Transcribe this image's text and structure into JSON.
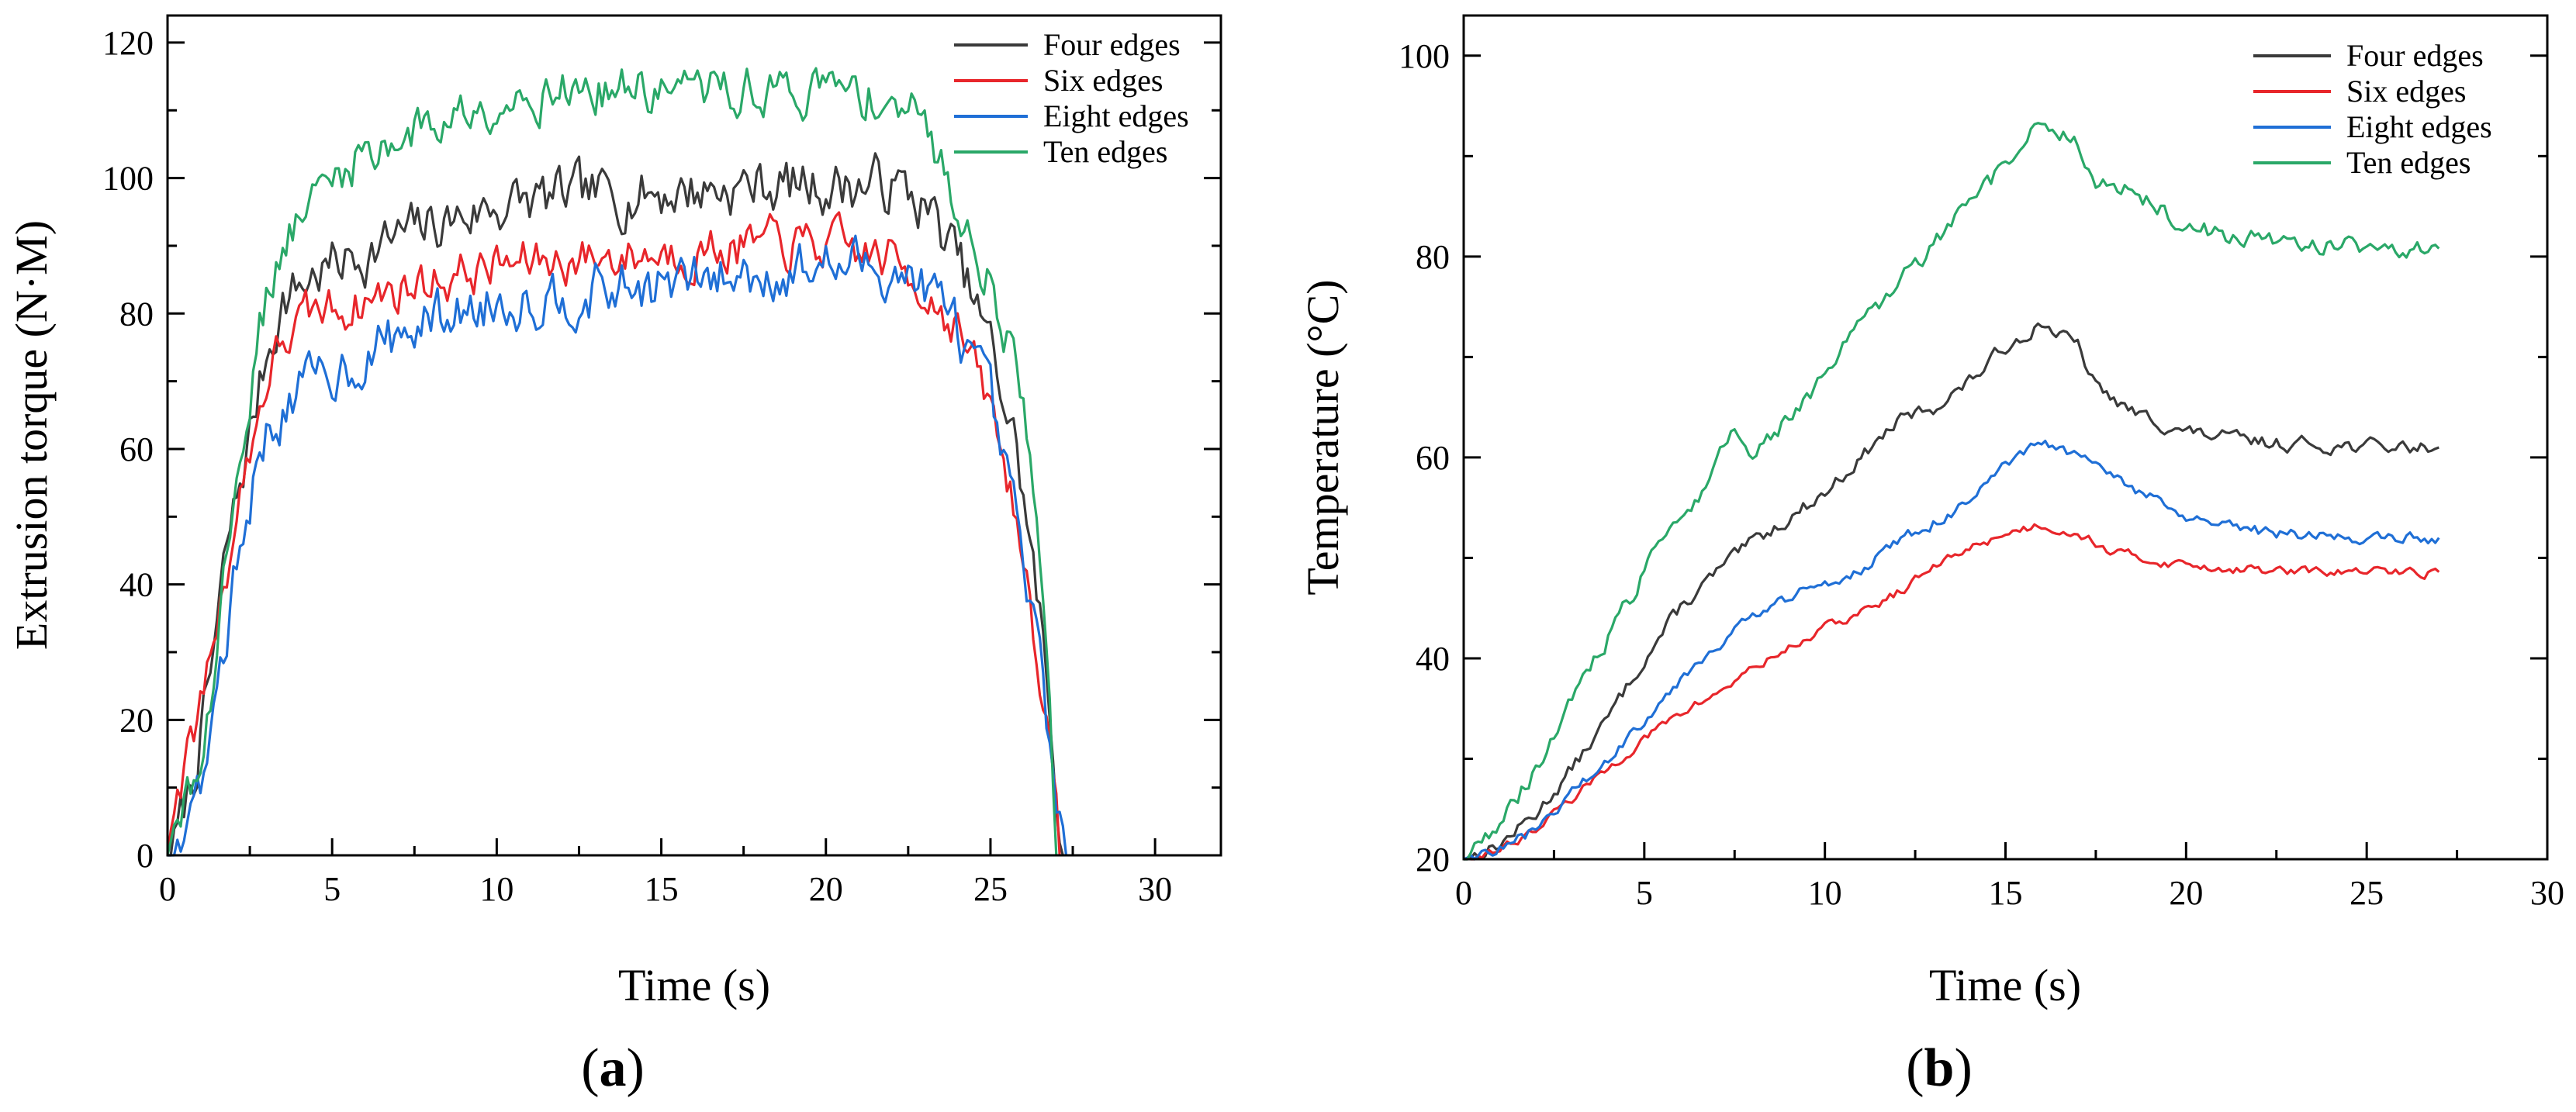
{
  "figure": {
    "panels": [
      {
        "id": "a",
        "caption_letter": "a",
        "caption_open": "(",
        "caption_close": ")",
        "colors": {
          "Four edges": "#3a3a3a",
          "Six edges": "#e8262b",
          "Eight edges": "#1f6fd6",
          "Ten edges": "#2aa868"
        }
      },
      {
        "id": "b",
        "caption_letter": "b",
        "caption_open": "(",
        "caption_close": ")",
        "colors": {
          "Four edges": "#3a3a3a",
          "Six edges": "#e8262b",
          "Eight edges": "#1f6fd6",
          "Ten edges": "#2aa868"
        }
      }
    ]
  },
  "chart_data": [
    {
      "type": "line",
      "panel": "a",
      "title": "",
      "xlabel": "Time (s)",
      "ylabel": "Extrusion torque (N·M)",
      "xlim": [
        0,
        32
      ],
      "ylim": [
        0,
        124
      ],
      "xticks": [
        0,
        5,
        10,
        15,
        20,
        25,
        30
      ],
      "yticks": [
        0,
        20,
        40,
        60,
        80,
        100,
        120
      ],
      "legend_position": "top-right",
      "noise_step": 0.1,
      "series": [
        {
          "name": "Four edges",
          "noise": 3.5,
          "points": [
            [
              0,
              0
            ],
            [
              0.3,
              3
            ],
            [
              0.8,
              12
            ],
            [
              1.3,
              26
            ],
            [
              1.8,
              45
            ],
            [
              2.5,
              62
            ],
            [
              3.0,
              74
            ],
            [
              3.5,
              82
            ],
            [
              4.5,
              86
            ],
            [
              6,
              89
            ],
            [
              8,
              93
            ],
            [
              10,
              96
            ],
            [
              12,
              97
            ],
            [
              15,
              98
            ],
            [
              18,
              99
            ],
            [
              20,
              99
            ],
            [
              22,
              99
            ],
            [
              23,
              96
            ],
            [
              24,
              88
            ],
            [
              25,
              75
            ],
            [
              25.8,
              60
            ],
            [
              26.5,
              35
            ],
            [
              27,
              10
            ],
            [
              27.2,
              0
            ]
          ]
        },
        {
          "name": "Six edges",
          "noise": 3.0,
          "points": [
            [
              0,
              0
            ],
            [
              0.2,
              8
            ],
            [
              0.6,
              14
            ],
            [
              1.0,
              22
            ],
            [
              1.5,
              35
            ],
            [
              2.0,
              48
            ],
            [
              2.5,
              60
            ],
            [
              3.0,
              70
            ],
            [
              3.5,
              76
            ],
            [
              4.5,
              80
            ],
            [
              6,
              82
            ],
            [
              8,
              85
            ],
            [
              10,
              87
            ],
            [
              12,
              88
            ],
            [
              15,
              89
            ],
            [
              18,
              90
            ],
            [
              20,
              90
            ],
            [
              22,
              88
            ],
            [
              23,
              84
            ],
            [
              24,
              78
            ],
            [
              25,
              66
            ],
            [
              25.8,
              50
            ],
            [
              26.5,
              28
            ],
            [
              27,
              5
            ],
            [
              27.1,
              0
            ]
          ]
        },
        {
          "name": "Eight edges",
          "noise": 3.5,
          "points": [
            [
              0,
              0
            ],
            [
              0.4,
              3
            ],
            [
              0.8,
              7
            ],
            [
              1.2,
              15
            ],
            [
              1.7,
              30
            ],
            [
              2.2,
              45
            ],
            [
              2.6,
              55
            ],
            [
              3.0,
              62
            ],
            [
              3.5,
              66
            ],
            [
              4.5,
              70
            ],
            [
              6,
              74
            ],
            [
              8,
              79
            ],
            [
              10,
              82
            ],
            [
              12,
              83
            ],
            [
              15,
              84
            ],
            [
              18,
              86
            ],
            [
              20,
              87
            ],
            [
              22,
              87
            ],
            [
              23,
              84
            ],
            [
              24,
              78
            ],
            [
              25,
              66
            ],
            [
              25.8,
              48
            ],
            [
              26.5,
              28
            ],
            [
              27,
              10
            ],
            [
              27.3,
              0
            ]
          ]
        },
        {
          "name": "Ten edges",
          "noise": 3.0,
          "points": [
            [
              0,
              0
            ],
            [
              0.3,
              3
            ],
            [
              0.8,
              10
            ],
            [
              1.3,
              25
            ],
            [
              1.8,
              45
            ],
            [
              2.3,
              62
            ],
            [
              2.8,
              78
            ],
            [
              3.3,
              88
            ],
            [
              4,
              94
            ],
            [
              5,
              100
            ],
            [
              6,
              104
            ],
            [
              8,
              108
            ],
            [
              10,
              112
            ],
            [
              12,
              113
            ],
            [
              15,
              113
            ],
            [
              18,
              113
            ],
            [
              20,
              113
            ],
            [
              22,
              112
            ],
            [
              23,
              108
            ],
            [
              24,
              96
            ],
            [
              25,
              85
            ],
            [
              25.8,
              72
            ],
            [
              26.3,
              55
            ],
            [
              26.8,
              25
            ],
            [
              27,
              0
            ]
          ]
        }
      ]
    },
    {
      "type": "line",
      "panel": "b",
      "title": "",
      "xlabel": "Time (s)",
      "ylabel": "Temperature (°C)",
      "xlim": [
        0,
        30
      ],
      "ylim": [
        20,
        104
      ],
      "xticks": [
        0,
        5,
        10,
        15,
        20,
        25,
        30
      ],
      "yticks": [
        20,
        40,
        60,
        80,
        100
      ],
      "legend_position": "top-right",
      "noise_step": 0.1,
      "series": [
        {
          "name": "Four edges",
          "noise": 0.6,
          "points": [
            [
              0,
              20
            ],
            [
              1,
              21.5
            ],
            [
              2,
              24.5
            ],
            [
              3,
              29
            ],
            [
              4,
              34
            ],
            [
              5,
              40
            ],
            [
              6,
              45
            ],
            [
              7,
              48.5
            ],
            [
              8,
              51.5
            ],
            [
              9,
              54
            ],
            [
              10,
              56.5
            ],
            [
              11,
              60
            ],
            [
              12,
              63.5
            ],
            [
              13,
              65
            ],
            [
              14,
              67.5
            ],
            [
              15,
              71
            ],
            [
              16,
              73.5
            ],
            [
              17,
              71
            ],
            [
              17.5,
              67
            ],
            [
              18.5,
              64.5
            ],
            [
              20,
              62.5
            ],
            [
              22,
              61.5
            ],
            [
              25,
              61.1
            ],
            [
              27,
              61
            ]
          ]
        },
        {
          "name": "Six edges",
          "noise": 0.4,
          "points": [
            [
              0,
              20
            ],
            [
              1,
              21
            ],
            [
              2,
              23
            ],
            [
              3,
              26
            ],
            [
              4,
              29
            ],
            [
              5,
              32
            ],
            [
              6,
              34.5
            ],
            [
              7,
              36.5
            ],
            [
              8,
              39
            ],
            [
              9,
              41
            ],
            [
              10,
              43
            ],
            [
              11,
              44.5
            ],
            [
              12,
              46.5
            ],
            [
              13,
              49
            ],
            [
              14,
              51
            ],
            [
              15,
              52.5
            ],
            [
              16,
              53.3
            ],
            [
              17,
              52.5
            ],
            [
              18,
              50.5
            ],
            [
              19.5,
              49.5
            ],
            [
              21,
              49
            ],
            [
              23,
              48.6
            ],
            [
              27,
              48.6
            ]
          ]
        },
        {
          "name": "Eight edges",
          "noise": 0.5,
          "points": [
            [
              0,
              20
            ],
            [
              1,
              21
            ],
            [
              2,
              23
            ],
            [
              3,
              26.5
            ],
            [
              4,
              30
            ],
            [
              5,
              34
            ],
            [
              6,
              38
            ],
            [
              7,
              41.5
            ],
            [
              8,
              44
            ],
            [
              9,
              46
            ],
            [
              10,
              47.5
            ],
            [
              11,
              49
            ],
            [
              12,
              51.5
            ],
            [
              13,
              53.5
            ],
            [
              14,
              55.5
            ],
            [
              15,
              59
            ],
            [
              16,
              61.5
            ],
            [
              17,
              60
            ],
            [
              18,
              58
            ],
            [
              19,
              56
            ],
            [
              20,
              54
            ],
            [
              21,
              53
            ],
            [
              23,
              52.3
            ],
            [
              25,
              52
            ],
            [
              27,
              52
            ]
          ]
        },
        {
          "name": "Ten edges",
          "noise": 0.8,
          "points": [
            [
              0,
              20
            ],
            [
              1,
              23.5
            ],
            [
              2,
              29
            ],
            [
              3,
              36
            ],
            [
              4,
              42
            ],
            [
              5,
              48.5
            ],
            [
              6,
              54
            ],
            [
              7,
              59
            ],
            [
              7.5,
              63
            ],
            [
              8,
              60.5
            ],
            [
              9,
              64
            ],
            [
              10,
              68
            ],
            [
              11,
              73
            ],
            [
              12,
              77
            ],
            [
              13,
              81
            ],
            [
              14,
              85
            ],
            [
              15,
              89
            ],
            [
              16,
              93.5
            ],
            [
              17,
              91
            ],
            [
              17.5,
              88
            ],
            [
              18.5,
              86.5
            ],
            [
              20,
              83
            ],
            [
              22,
              81.6
            ],
            [
              25,
              81
            ],
            [
              27,
              80.8
            ]
          ]
        }
      ]
    }
  ]
}
